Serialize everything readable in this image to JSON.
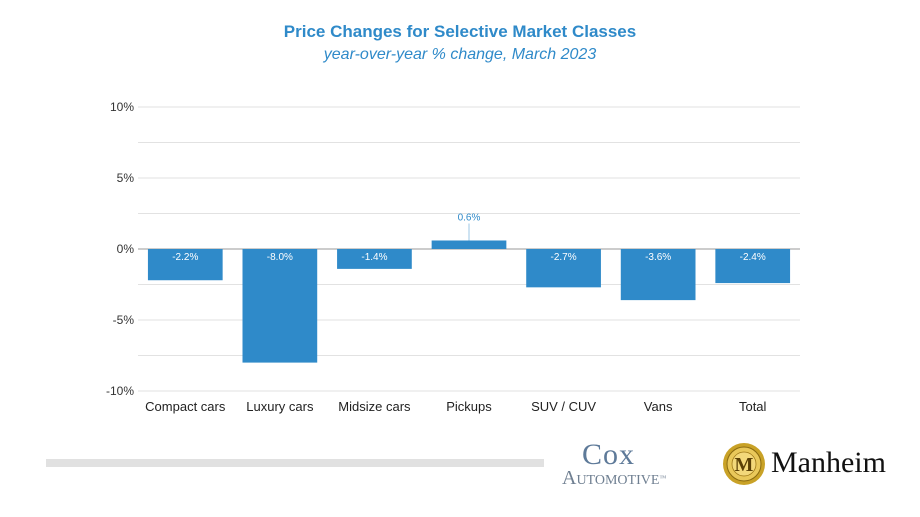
{
  "chart_data": {
    "type": "bar",
    "title": "Price Changes for Selective Market Classes",
    "subtitle": "year-over-year % change, March 2023",
    "xlabel": "",
    "ylabel": "",
    "categories": [
      "Compact cars",
      "Luxury cars",
      "Midsize cars",
      "Pickups",
      "SUV / CUV",
      "Vans",
      "Total"
    ],
    "values": [
      -2.2,
      -8.0,
      -1.4,
      0.6,
      -2.7,
      -3.6,
      -2.4
    ],
    "data_labels": [
      "-2.2%",
      "-8.0%",
      "-1.4%",
      "0.6%",
      "-2.7%",
      "-3.6%",
      "-2.4%"
    ],
    "ylim": [
      -10,
      10
    ],
    "yticks": [
      10,
      5,
      0,
      -5,
      -10
    ],
    "ytick_labels": [
      "10%",
      "5%",
      "0%",
      "-5%",
      "-10%"
    ],
    "grid": true,
    "bar_color": "#2f8ac9",
    "title_color": "#2f8ac9"
  },
  "logos": {
    "cox_top": "Cox",
    "cox_bottom": "Automotive",
    "cox_tm": "™",
    "manheim_seal_letter": "M",
    "manheim_word": "Manheim"
  }
}
